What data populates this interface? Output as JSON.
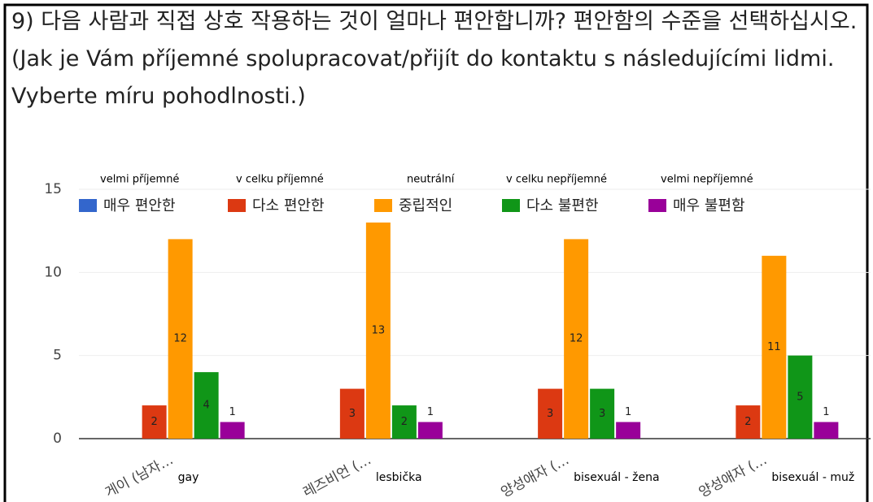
{
  "chart_data": {
    "type": "bar",
    "title": "9) 다음 사람과 직접 상호 작용하는 것이 얼마나 편안합니까? 편안함의 수준을 선택하십시오. (Jak je Vám příjemné spolupracovat/přijít do kontaktu s následujícími lidmi. Vyberte míru pohodlnosti.)",
    "categories": [
      "게이 (남자…",
      "레즈비언 (…",
      "양성애자 (…",
      "양성애자 (…"
    ],
    "category_annotations": [
      "gay",
      "lesbička",
      "bisexuál - žena",
      "bisexuál - muž"
    ],
    "series": [
      {
        "name": "매우 편안한",
        "color": "#3366cc",
        "values": [
          0,
          0,
          0,
          0
        ]
      },
      {
        "name": "다소 편안한",
        "color": "#dc3912",
        "values": [
          2,
          3,
          3,
          2
        ]
      },
      {
        "name": "중립적인",
        "color": "#ff9900",
        "values": [
          12,
          13,
          12,
          11
        ]
      },
      {
        "name": "다소 불편한",
        "color": "#109618",
        "values": [
          4,
          2,
          3,
          5
        ]
      },
      {
        "name": "매우 불편함",
        "color": "#990099",
        "values": [
          1,
          1,
          1,
          1
        ]
      }
    ],
    "legend_annotations": [
      "velmi příjemné",
      "v celku příjemné",
      "neutrální",
      "v celku nepříjemné",
      "velmi nepříjemné"
    ],
    "ylim": [
      0,
      15
    ],
    "yticks": [
      0,
      5,
      10,
      15
    ],
    "grid": true,
    "legend": "top"
  }
}
